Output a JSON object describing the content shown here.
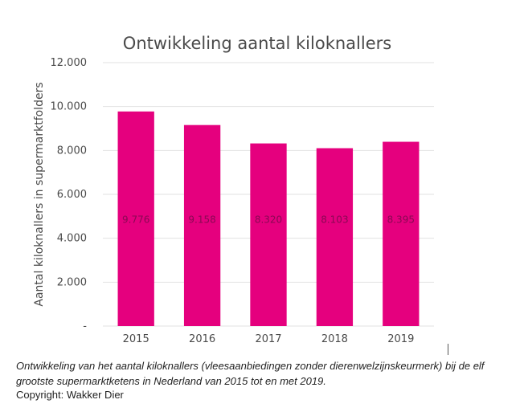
{
  "chart_data": {
    "type": "bar",
    "title": "Ontwikkeling aantal kiloknallers",
    "xlabel": "",
    "ylabel": "Aantal kiloknallers in supermarktfolders",
    "categories": [
      "2015",
      "2016",
      "2017",
      "2018",
      "2019"
    ],
    "values": [
      9776,
      9158,
      8320,
      8103,
      8395
    ],
    "value_labels": [
      "9.776",
      "9.158",
      "8.320",
      "8.103",
      "8.395"
    ],
    "ylim": [
      0,
      12000
    ],
    "yticks": [
      0,
      2000,
      4000,
      6000,
      8000,
      10000,
      12000
    ],
    "ytick_labels": [
      "-",
      "2.000",
      "4.000",
      "6.000",
      "8.000",
      "10.000",
      "12.000"
    ],
    "grid": true,
    "bar_color": "#e5007e"
  },
  "caption": "Ontwikkeling van het aantal kiloknallers (vleesaanbiedingen zonder dierenwelzijnskeurmerk) bij de elf grootste supermarktketens in Nederland van 2015 tot en met 2019.",
  "copyright": "Copyright: Wakker Dier"
}
